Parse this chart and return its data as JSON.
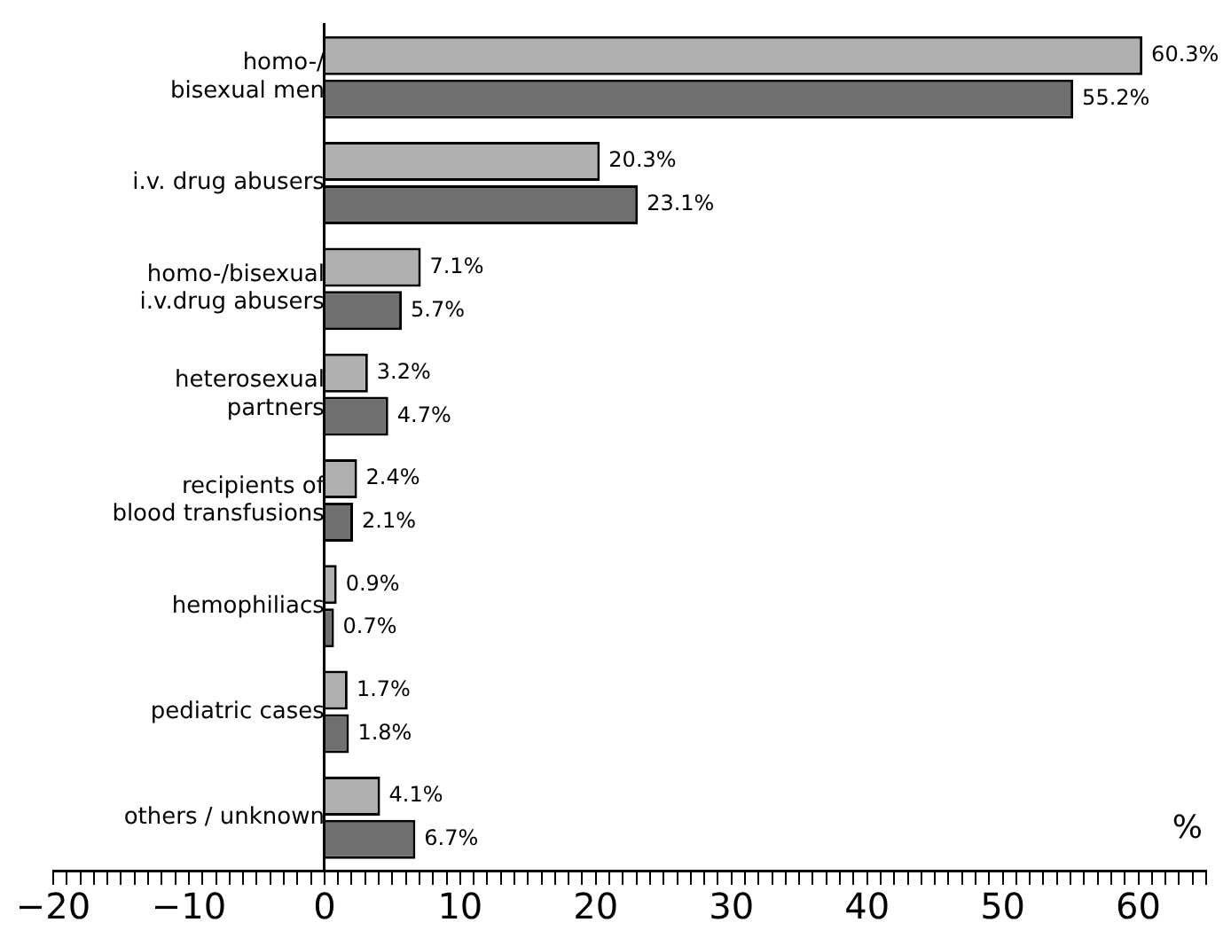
{
  "chart_data": {
    "type": "bar",
    "orientation": "horizontal",
    "xlabel": "%",
    "categories": [
      "homo-/\nbisexual men",
      "i.v. drug abusers",
      "homo-/bisexual\ni.v.drug abusers",
      "heterosexual\npartners",
      "recipients of\nblood transfusions",
      "hemophiliacs",
      "pediatric cases",
      "others / unknown"
    ],
    "series": [
      {
        "color": "#b0b0b0",
        "values": [
          60.3,
          20.3,
          7.1,
          3.2,
          2.4,
          0.9,
          1.7,
          4.1
        ],
        "value_labels": [
          "60.3%",
          "20.3%",
          "7.1%",
          "3.2%",
          "2.4%",
          "0.9%",
          "1.7%",
          "4.1%"
        ]
      },
      {
        "color": "#707070",
        "values": [
          55.2,
          23.1,
          5.7,
          4.7,
          2.1,
          0.7,
          1.8,
          6.7
        ],
        "value_labels": [
          "55.2%",
          "23.1%",
          "5.7%",
          "4.7%",
          "2.1%",
          "0.7%",
          "1.8%",
          "6.7%"
        ]
      }
    ],
    "xlim": [
      -20,
      65
    ],
    "xticks": [
      -20,
      {
        "value": -19,
        "label": null
      },
      {
        "value": -18,
        "label": null
      },
      {
        "value": -17,
        "label": null
      },
      {
        "value": -16,
        "label": null
      },
      {
        "value": -15,
        "label": null
      },
      {
        "value": -14,
        "label": null
      },
      {
        "value": -13,
        "label": null
      },
      {
        "value": -12,
        "label": null
      },
      {
        "value": -11,
        "label": null
      },
      -10,
      {
        "value": -9,
        "label": null
      },
      {
        "value": -8,
        "label": null
      },
      {
        "value": -7,
        "label": null
      },
      {
        "value": -6,
        "label": null
      },
      {
        "value": -5,
        "label": null
      },
      {
        "value": -4,
        "label": null
      },
      {
        "value": -3,
        "label": null
      },
      {
        "value": -2,
        "label": null
      },
      {
        "value": -1,
        "label": null
      },
      0,
      {
        "value": 1,
        "label": null
      },
      {
        "value": 2,
        "label": null
      },
      {
        "value": 3,
        "label": null
      },
      {
        "value": 4,
        "label": null
      },
      {
        "value": 5,
        "label": null
      },
      {
        "value": 6,
        "label": null
      },
      {
        "value": 7,
        "label": null
      },
      {
        "value": 8,
        "label": null
      },
      {
        "value": 9,
        "label": null
      },
      10,
      {
        "value": 11,
        "label": null
      },
      {
        "value": 12,
        "label": null
      },
      {
        "value": 13,
        "label": null
      },
      {
        "value": 14,
        "label": null
      },
      {
        "value": 15,
        "label": null
      },
      {
        "value": 16,
        "label": null
      },
      {
        "value": 17,
        "label": null
      },
      {
        "value": 18,
        "label": null
      },
      {
        "value": 19,
        "label": null
      },
      20,
      {
        "value": 21,
        "label": null
      },
      {
        "value": 22,
        "label": null
      },
      {
        "value": 23,
        "label": null
      },
      {
        "value": 24,
        "label": null
      },
      {
        "value": 25,
        "label": null
      },
      {
        "value": 26,
        "label": null
      },
      {
        "value": 27,
        "label": null
      },
      {
        "value": 28,
        "label": null
      },
      {
        "value": 29,
        "label": null
      },
      30,
      {
        "value": 31,
        "label": null
      },
      {
        "value": 32,
        "label": null
      },
      {
        "value": 33,
        "label": null
      },
      {
        "value": 34,
        "label": null
      },
      {
        "value": 35,
        "label": null
      },
      {
        "value": 36,
        "label": null
      },
      {
        "value": 37,
        "label": null
      },
      {
        "value": 38,
        "label": null
      },
      {
        "value": 39,
        "label": null
      },
      40,
      {
        "value": 41,
        "label": null
      },
      {
        "value": 42,
        "label": null
      },
      {
        "value": 43,
        "label": null
      },
      {
        "value": 44,
        "label": null
      },
      {
        "value": 45,
        "label": null
      },
      {
        "value": 46,
        "label": null
      },
      {
        "value": 47,
        "label": null
      },
      {
        "value": 48,
        "label": null
      },
      {
        "value": 49,
        "label": null
      },
      50,
      {
        "value": 51,
        "label": null
      },
      {
        "value": 52,
        "label": null
      },
      {
        "value": 53,
        "label": null
      },
      {
        "value": 54,
        "label": null
      },
      {
        "value": 55,
        "label": null
      },
      {
        "value": 56,
        "label": null
      },
      {
        "value": 57,
        "label": null
      },
      {
        "value": 58,
        "label": null
      },
      {
        "value": 59,
        "label": null
      },
      60,
      {
        "value": 61,
        "label": null
      },
      {
        "value": 62,
        "label": null
      },
      {
        "value": 63,
        "label": null
      },
      {
        "value": 64,
        "label": null
      },
      {
        "value": 65,
        "label": null
      }
    ],
    "grid": false,
    "legend": false
  }
}
